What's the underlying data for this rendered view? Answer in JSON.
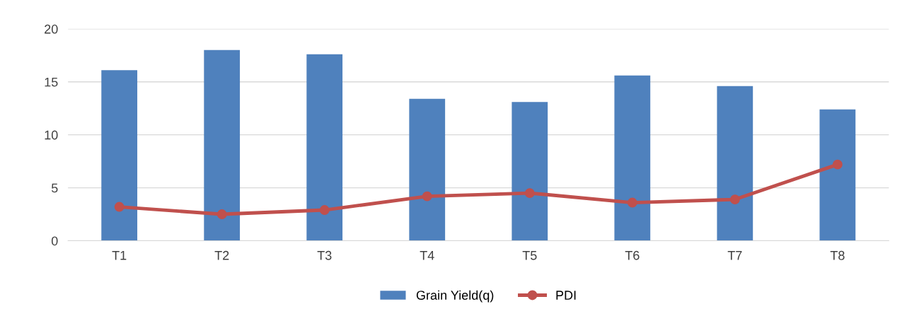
{
  "chart_data": {
    "type": "bar",
    "categories": [
      "T1",
      "T2",
      "T3",
      "T4",
      "T5",
      "T6",
      "T7",
      "T8"
    ],
    "series": [
      {
        "name": "Grain Yield(q)",
        "color": "#4f81bd",
        "values": [
          16.1,
          18.0,
          17.6,
          13.4,
          13.1,
          15.6,
          14.6,
          12.4
        ]
      },
      {
        "name": "PDI",
        "color": "#c0504d",
        "type": "line",
        "marker": "circle",
        "values": [
          3.2,
          2.5,
          2.9,
          4.2,
          4.5,
          3.6,
          3.9,
          7.2
        ]
      }
    ],
    "ylim": [
      0,
      20
    ],
    "yticks": [
      0,
      5,
      10,
      15,
      20
    ],
    "grid": "y",
    "legend": "bottom"
  }
}
